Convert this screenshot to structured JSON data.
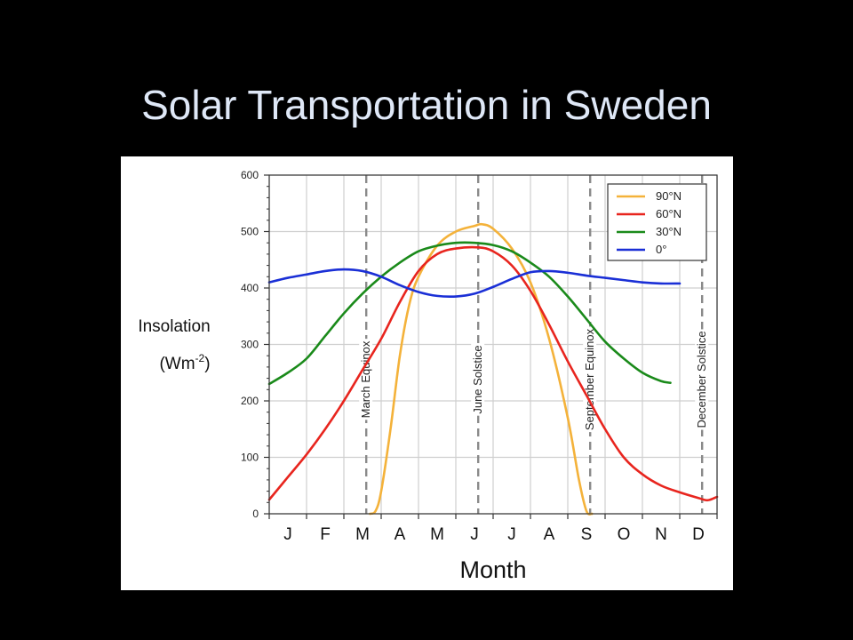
{
  "slide": {
    "title": "Solar Transportation in Sweden"
  },
  "chart_data": {
    "type": "line",
    "ylabel": "Insolation",
    "yunit_base": "(Wm",
    "yunit_sup": "-2",
    "yunit_end": ")",
    "xlabel": "Month",
    "ylim": [
      0,
      600
    ],
    "yticks": [
      "0",
      "100",
      "200",
      "300",
      "400",
      "500",
      "600"
    ],
    "categories": [
      "J",
      "F",
      "M",
      "A",
      "M",
      "J",
      "J",
      "A",
      "S",
      "O",
      "N",
      "D"
    ],
    "markers": [
      {
        "month": 2.6,
        "label": "March Equinox"
      },
      {
        "month": 5.6,
        "label": "June Solstice"
      },
      {
        "month": 8.6,
        "label": "September Equinox"
      },
      {
        "month": 11.6,
        "label": "December Solstice"
      }
    ],
    "series": [
      {
        "name": "90°N",
        "color": "#f4b23a",
        "points": [
          [
            2.7,
            0
          ],
          [
            2.85,
            5
          ],
          [
            3.0,
            40
          ],
          [
            3.25,
            150
          ],
          [
            3.5,
            280
          ],
          [
            3.75,
            370
          ],
          [
            4.0,
            420
          ],
          [
            4.5,
            475
          ],
          [
            5.0,
            500
          ],
          [
            5.5,
            510
          ],
          [
            5.7,
            513
          ],
          [
            6.0,
            505
          ],
          [
            6.5,
            470
          ],
          [
            7.0,
            410
          ],
          [
            7.5,
            310
          ],
          [
            8.0,
            170
          ],
          [
            8.3,
            60
          ],
          [
            8.5,
            5
          ],
          [
            8.65,
            0
          ]
        ]
      },
      {
        "name": "60°N",
        "color": "#e8251e",
        "points": [
          [
            0.0,
            25
          ],
          [
            0.5,
            65
          ],
          [
            1.0,
            105
          ],
          [
            1.5,
            150
          ],
          [
            2.0,
            200
          ],
          [
            2.5,
            255
          ],
          [
            3.0,
            310
          ],
          [
            3.5,
            375
          ],
          [
            4.0,
            430
          ],
          [
            4.5,
            460
          ],
          [
            5.0,
            470
          ],
          [
            5.6,
            472
          ],
          [
            6.0,
            465
          ],
          [
            6.5,
            440
          ],
          [
            7.0,
            395
          ],
          [
            7.5,
            335
          ],
          [
            8.0,
            270
          ],
          [
            8.5,
            210
          ],
          [
            9.0,
            150
          ],
          [
            9.5,
            100
          ],
          [
            10.0,
            70
          ],
          [
            10.5,
            50
          ],
          [
            11.0,
            38
          ],
          [
            11.5,
            28
          ],
          [
            11.75,
            24
          ],
          [
            12.0,
            30
          ]
        ]
      },
      {
        "name": "30°N",
        "color": "#1a8a1a",
        "points": [
          [
            0.0,
            230
          ],
          [
            0.5,
            250
          ],
          [
            1.0,
            275
          ],
          [
            1.5,
            315
          ],
          [
            2.0,
            355
          ],
          [
            2.5,
            390
          ],
          [
            3.0,
            420
          ],
          [
            3.5,
            445
          ],
          [
            4.0,
            465
          ],
          [
            4.5,
            475
          ],
          [
            5.0,
            480
          ],
          [
            5.5,
            480
          ],
          [
            6.0,
            476
          ],
          [
            6.5,
            465
          ],
          [
            7.0,
            445
          ],
          [
            7.5,
            420
          ],
          [
            8.0,
            385
          ],
          [
            8.5,
            345
          ],
          [
            9.0,
            305
          ],
          [
            9.5,
            275
          ],
          [
            10.0,
            250
          ],
          [
            10.5,
            235
          ],
          [
            10.75,
            232
          ]
        ]
      },
      {
        "name": "0°",
        "color": "#1a2fd6",
        "points": [
          [
            0.0,
            410
          ],
          [
            0.5,
            418
          ],
          [
            1.0,
            424
          ],
          [
            1.5,
            430
          ],
          [
            2.0,
            433
          ],
          [
            2.5,
            430
          ],
          [
            3.0,
            420
          ],
          [
            3.5,
            405
          ],
          [
            4.0,
            393
          ],
          [
            4.5,
            386
          ],
          [
            5.0,
            385
          ],
          [
            5.5,
            390
          ],
          [
            6.0,
            402
          ],
          [
            6.5,
            416
          ],
          [
            7.0,
            428
          ],
          [
            7.5,
            430
          ],
          [
            8.0,
            427
          ],
          [
            8.5,
            422
          ],
          [
            9.0,
            418
          ],
          [
            9.5,
            414
          ],
          [
            10.0,
            410
          ],
          [
            10.5,
            408
          ],
          [
            11.0,
            408
          ]
        ]
      }
    ],
    "grid": true,
    "legend_position": "top-right"
  }
}
